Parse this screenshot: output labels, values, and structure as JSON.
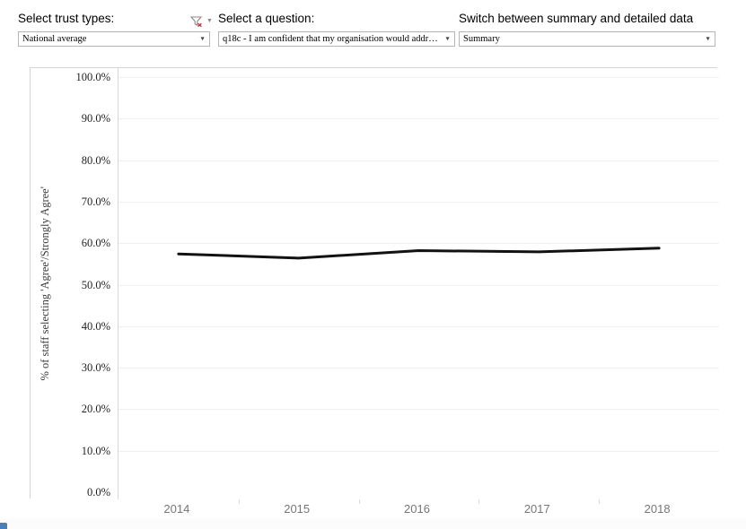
{
  "controls": {
    "trust_types": {
      "label": "Select trust types:",
      "value": "National average",
      "caret": "▼",
      "filter_icon": "filter-exclude-icon",
      "menu_caret": "▼"
    },
    "question": {
      "label": "Select a question:",
      "value": "q18c - I am confident that my organisation would address my con…",
      "caret": "▼"
    },
    "view_mode": {
      "label": "Switch between summary and detailed data",
      "value": "Summary",
      "caret": "▼"
    }
  },
  "chart_data": {
    "type": "line",
    "x": [
      "2014",
      "2015",
      "2016",
      "2017",
      "2018"
    ],
    "series": [
      {
        "name": "National average",
        "values": [
          57.4,
          56.4,
          58.2,
          57.9,
          58.8
        ]
      }
    ],
    "title": "",
    "xlabel": "",
    "ylabel": "% of staff selecting 'Agree'/Strongly Agree'",
    "ylim": [
      0,
      100
    ],
    "ytick_step": 10,
    "ytick_suffix": "%",
    "grid": true,
    "legend": "none",
    "line_color": "#121212"
  },
  "colors": {
    "line": "#121212",
    "grid": "#f1f1f1",
    "panel_border": "#d4d4d4",
    "axis_line": "#c9c9c9",
    "x_label_gray": "#767676",
    "filter_icon_gray": "#8a8a8a",
    "filter_icon_red": "#d0342c",
    "blue_sliver": "#4a7ebc"
  }
}
